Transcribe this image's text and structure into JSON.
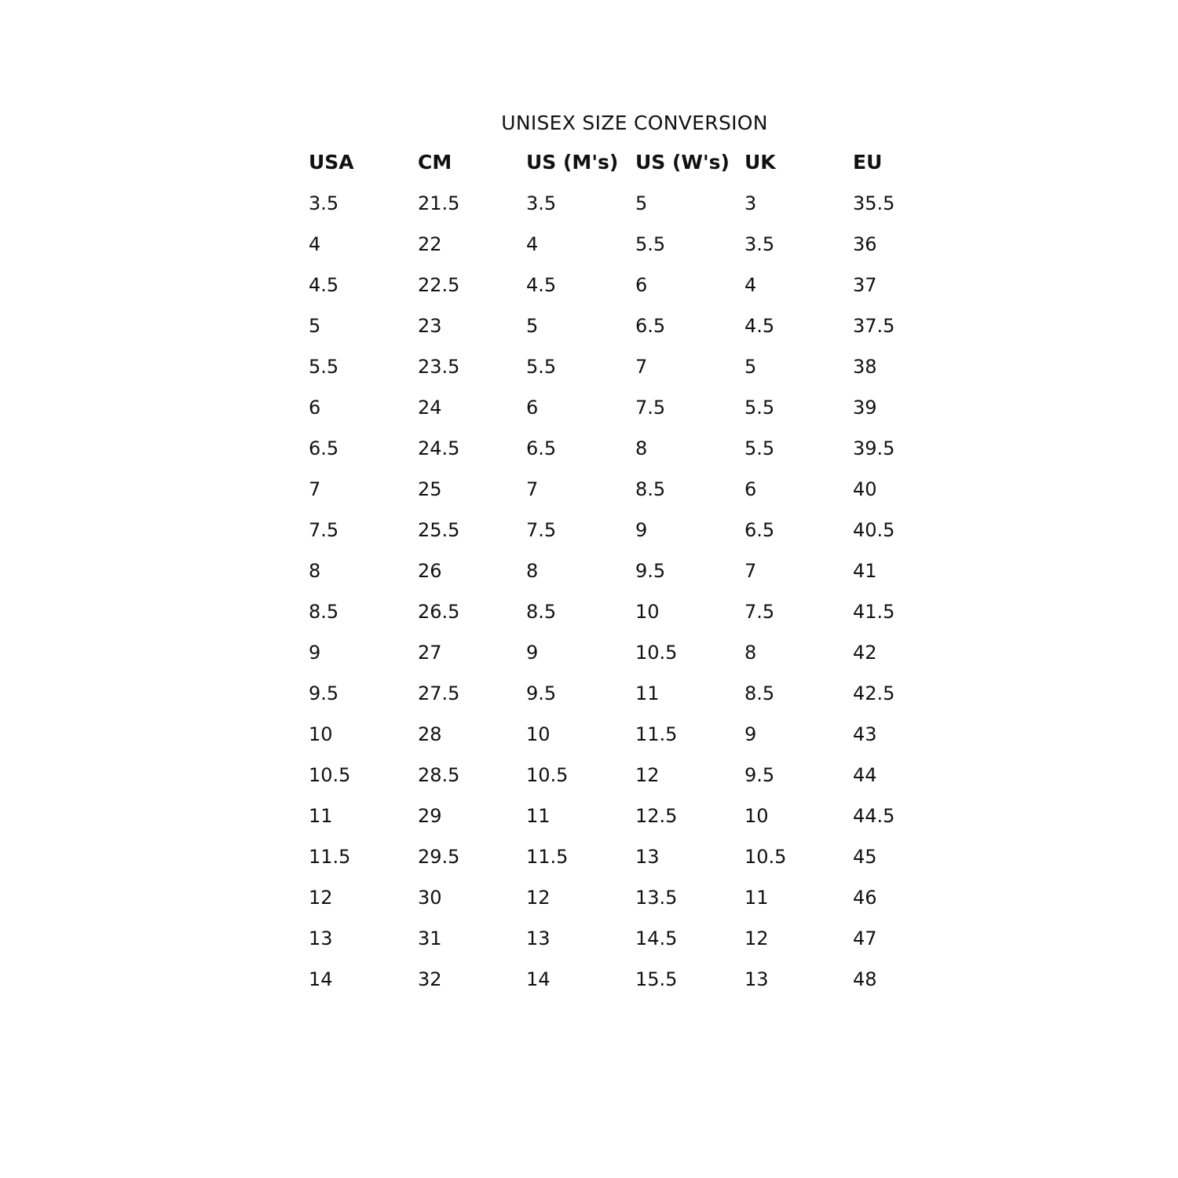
{
  "title": "UNISEX SIZE CONVERSION",
  "columns": [
    "USA",
    "CM",
    "US (M's)",
    "US (W's)",
    "UK",
    "EU"
  ],
  "rows": [
    [
      "3.5",
      "21.5",
      "3.5",
      "5",
      "3",
      "35.5"
    ],
    [
      "4",
      "22",
      "4",
      "5.5",
      "3.5",
      "36"
    ],
    [
      "4.5",
      "22.5",
      "4.5",
      "6",
      "4",
      "37"
    ],
    [
      "5",
      "23",
      "5",
      "6.5",
      "4.5",
      "37.5"
    ],
    [
      "5.5",
      "23.5",
      "5.5",
      "7",
      "5",
      "38"
    ],
    [
      "6",
      "24",
      "6",
      "7.5",
      "5.5",
      "39"
    ],
    [
      "6.5",
      "24.5",
      "6.5",
      "8",
      "5.5",
      "39.5"
    ],
    [
      "7",
      "25",
      "7",
      "8.5",
      "6",
      "40"
    ],
    [
      "7.5",
      "25.5",
      "7.5",
      "9",
      "6.5",
      "40.5"
    ],
    [
      "8",
      "26",
      "8",
      "9.5",
      "7",
      "41"
    ],
    [
      "8.5",
      "26.5",
      "8.5",
      "10",
      "7.5",
      "41.5"
    ],
    [
      "9",
      "27",
      "9",
      "10.5",
      "8",
      "42"
    ],
    [
      "9.5",
      "27.5",
      "9.5",
      "11",
      "8.5",
      "42.5"
    ],
    [
      "10",
      "28",
      "10",
      "11.5",
      "9",
      "43"
    ],
    [
      "10.5",
      "28.5",
      "10.5",
      "12",
      "9.5",
      "44"
    ],
    [
      "11",
      "29",
      "11",
      "12.5",
      "10",
      "44.5"
    ],
    [
      "11.5",
      "29.5",
      "11.5",
      "13",
      "10.5",
      "45"
    ],
    [
      "12",
      "30",
      "12",
      "13.5",
      "11",
      "46"
    ],
    [
      "13",
      "31",
      "13",
      "14.5",
      "12",
      "47"
    ],
    [
      "14",
      "32",
      "14",
      "15.5",
      "13",
      "48"
    ]
  ]
}
